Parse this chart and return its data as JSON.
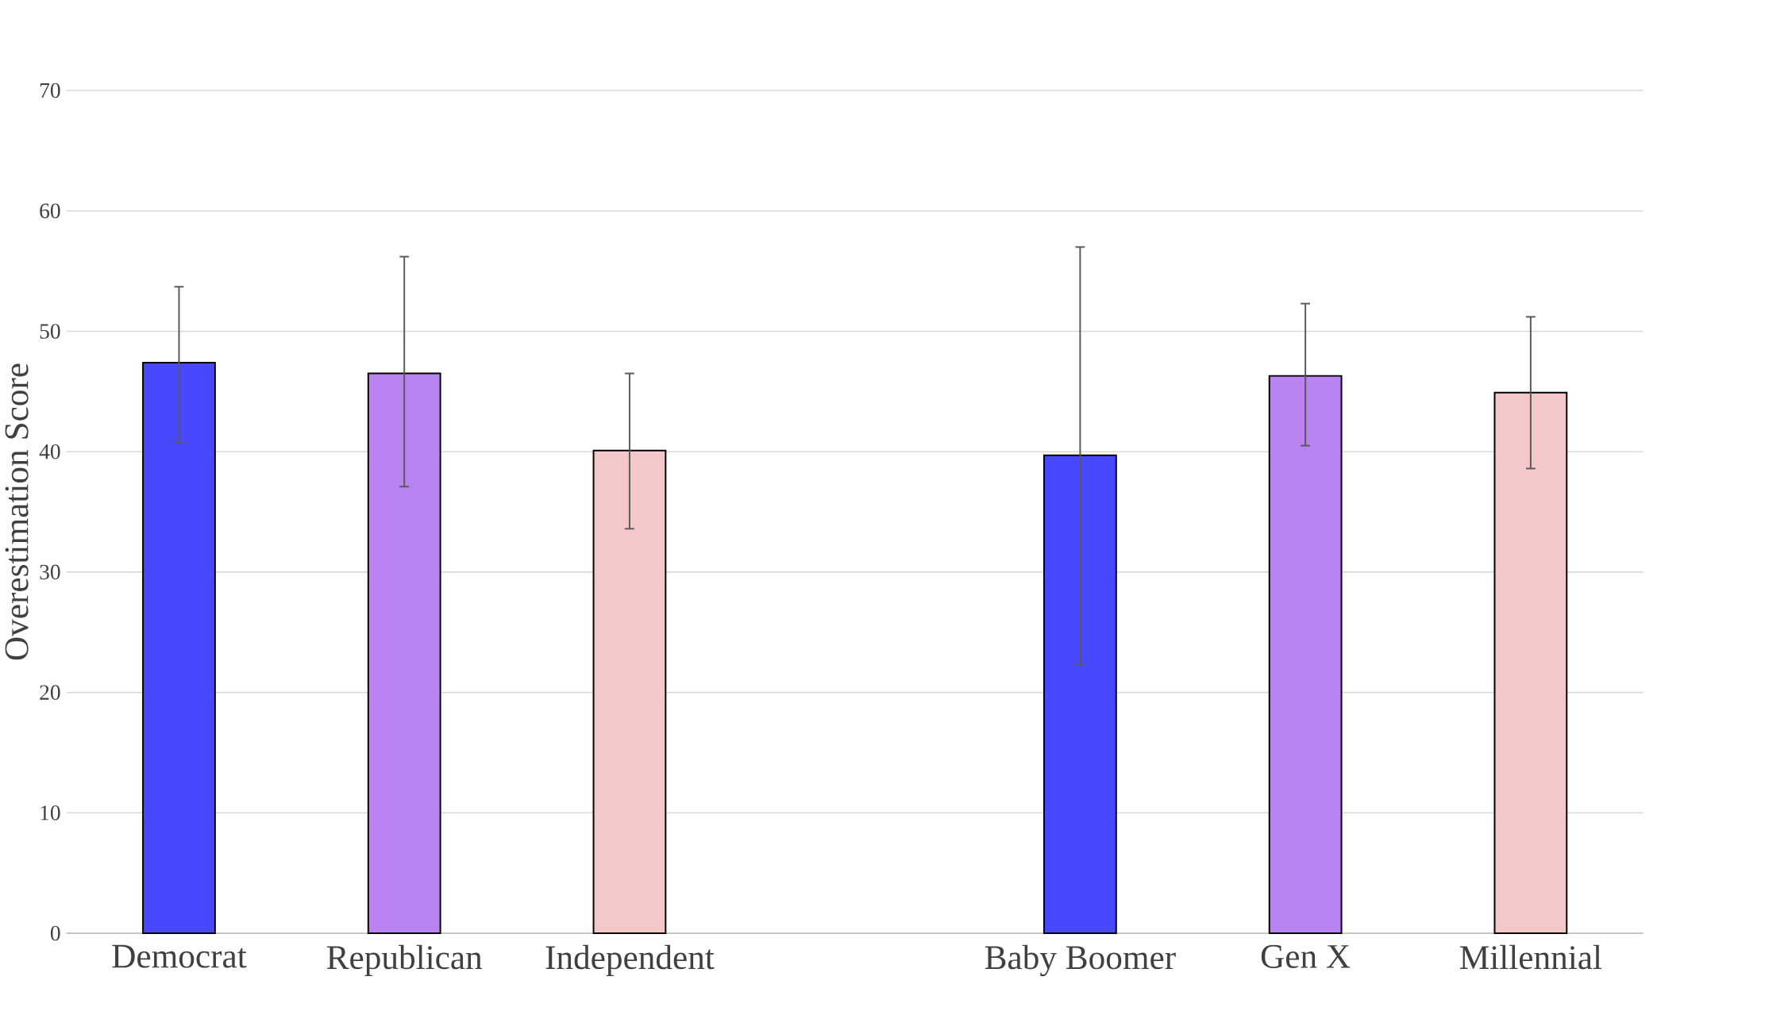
{
  "chart_data": {
    "type": "bar",
    "ylabel": "Overestimation Score",
    "categories": [
      "Democrat",
      "Republican",
      "Independent",
      null,
      "Baby Boomer",
      "Gen X",
      "Millennial"
    ],
    "values": [
      47.4,
      46.5,
      40.1,
      null,
      39.7,
      46.3,
      44.9
    ],
    "colors": [
      "#4848ff",
      "#b983f2",
      "#f4c7c9",
      null,
      "#4848ff",
      "#b983f2",
      "#f4c7c9"
    ],
    "errors": [
      [
        40.8,
        53.7
      ],
      [
        37.1,
        56.2
      ],
      [
        33.6,
        46.5
      ],
      null,
      [
        22.3,
        57.0
      ],
      [
        40.5,
        52.3
      ],
      [
        38.6,
        51.2
      ]
    ],
    "ylim": [
      0,
      70
    ],
    "yticks": [
      0,
      10,
      20,
      30,
      40,
      50,
      60,
      70
    ],
    "grid": "y"
  }
}
